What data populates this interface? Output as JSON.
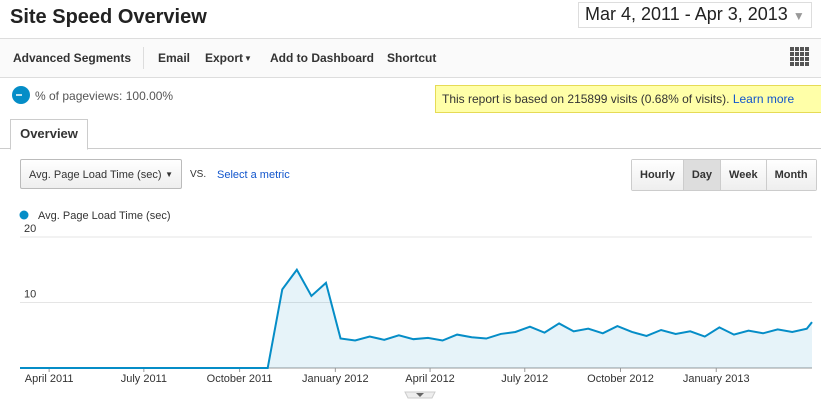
{
  "header": {
    "title": "Site Speed Overview",
    "date_range": "Mar 4, 2011 - Apr 3, 2013"
  },
  "toolbar": [
    "Advanced Segments",
    "Email",
    "Export",
    "Add to Dashboard",
    "Shortcut"
  ],
  "segment": "% of pageviews: 100.00%",
  "notice": {
    "text": "This report is based on 215899 visits (0.68% of visits).",
    "link": "Learn more"
  },
  "tab": "Overview",
  "metric_select": "Avg. Page Load Time (sec)",
  "vs": "VS.",
  "second_metric": "Select a metric",
  "granularity": [
    "Hourly",
    "Day",
    "Week",
    "Month"
  ],
  "chart_data": {
    "type": "area",
    "x": [
      "2011-03-04",
      "2011-03-18",
      "2011-04-01",
      "2011-04-15",
      "2011-04-29",
      "2011-05-13",
      "2011-05-27",
      "2011-06-10",
      "2011-06-24",
      "2011-07-08",
      "2011-07-22",
      "2011-08-05",
      "2011-08-19",
      "2011-09-02",
      "2011-09-16",
      "2011-09-30",
      "2011-10-14",
      "2011-10-28",
      "2011-11-11",
      "2011-11-25",
      "2011-12-09",
      "2011-12-23",
      "2012-01-06",
      "2012-01-20",
      "2012-02-03",
      "2012-02-17",
      "2012-03-02",
      "2012-03-16",
      "2012-03-30",
      "2012-04-13",
      "2012-04-27",
      "2012-05-11",
      "2012-05-25",
      "2012-06-08",
      "2012-06-22",
      "2012-07-06",
      "2012-07-20",
      "2012-08-03",
      "2012-08-17",
      "2012-08-31",
      "2012-09-14",
      "2012-09-28",
      "2012-10-12",
      "2012-10-26",
      "2012-11-09",
      "2012-11-23",
      "2012-12-07",
      "2012-12-21",
      "2013-01-04",
      "2013-01-18",
      "2013-02-01",
      "2013-02-15",
      "2013-03-01",
      "2013-03-15",
      "2013-03-29",
      "2013-04-03"
    ],
    "series": [
      {
        "name": "Avg. Page Load Time (sec)",
        "color": "#058dc7",
        "values": [
          0,
          0,
          0,
          0,
          0,
          0,
          0,
          0,
          0,
          0,
          0,
          0,
          0,
          0,
          0,
          0,
          0,
          0,
          12,
          15,
          11,
          13,
          4.5,
          4.2,
          4.8,
          4.3,
          5.0,
          4.4,
          4.6,
          4.2,
          5.1,
          4.7,
          4.5,
          5.2,
          5.5,
          6.3,
          5.4,
          6.8,
          5.6,
          6.0,
          5.3,
          6.4,
          5.5,
          4.9,
          5.8,
          5.2,
          5.6,
          4.8,
          6.2,
          5.1,
          5.7,
          5.3,
          5.9,
          5.5,
          6.0,
          7.0
        ]
      }
    ],
    "xlim": [
      "2011-03-04",
      "2013-04-03"
    ],
    "xticks": [
      {
        "value": "2011-04-01",
        "label": "April 2011"
      },
      {
        "value": "2011-07-01",
        "label": "July 2011"
      },
      {
        "value": "2011-10-01",
        "label": "October 2011"
      },
      {
        "value": "2012-01-01",
        "label": "January 2012"
      },
      {
        "value": "2012-04-01",
        "label": "April 2012"
      },
      {
        "value": "2012-07-01",
        "label": "July 2012"
      },
      {
        "value": "2012-10-01",
        "label": "October 2012"
      },
      {
        "value": "2013-01-01",
        "label": "January 2013"
      }
    ],
    "ylim": [
      0,
      20
    ],
    "yticks": [
      10,
      20
    ],
    "grid": true
  }
}
